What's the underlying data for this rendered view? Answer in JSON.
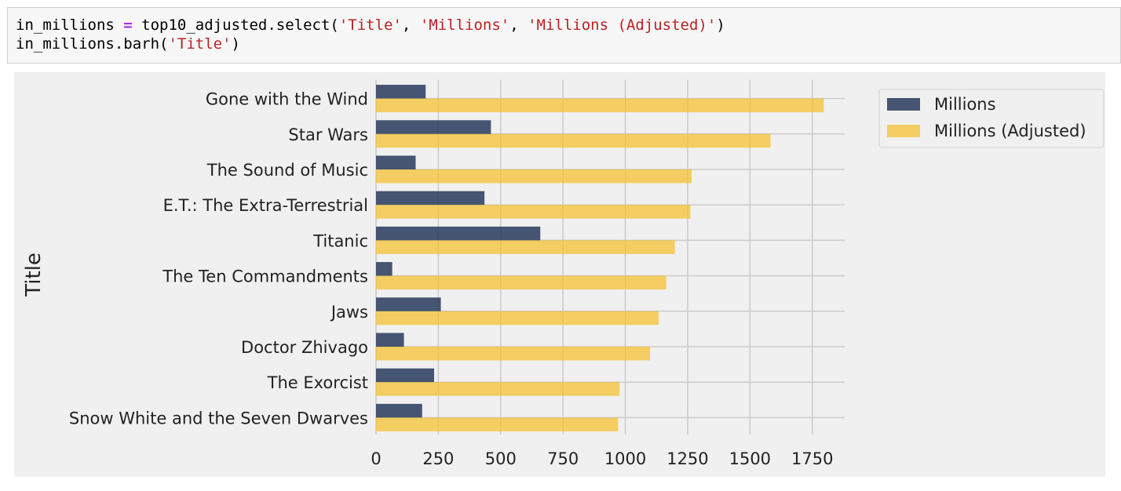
{
  "code_cell": {
    "lines": [
      [
        {
          "t": "in_millions ",
          "c": "plain"
        },
        {
          "t": "=",
          "c": "op"
        },
        {
          "t": " top10_adjusted.select(",
          "c": "plain"
        },
        {
          "t": "'Title'",
          "c": "str"
        },
        {
          "t": ", ",
          "c": "plain"
        },
        {
          "t": "'Millions'",
          "c": "str"
        },
        {
          "t": ", ",
          "c": "plain"
        },
        {
          "t": "'Millions (Adjusted)'",
          "c": "str"
        },
        {
          "t": ")",
          "c": "plain"
        }
      ],
      [
        {
          "t": "in_millions.barh(",
          "c": "plain"
        },
        {
          "t": "'Title'",
          "c": "str"
        },
        {
          "t": ")",
          "c": "plain"
        }
      ]
    ]
  },
  "chart_data": {
    "type": "bar",
    "orientation": "horizontal",
    "ylabel": "Title",
    "xlabel": "",
    "categories": [
      "Gone with the Wind",
      "Star Wars",
      "The Sound of Music",
      "E.T.: The Extra-Terrestrial",
      "Titanic",
      "The Ten Commandments",
      "Jaws",
      "Doctor Zhivago",
      "The Exorcist",
      "Snow White and the Seven Dwarves"
    ],
    "series": [
      {
        "name": "Millions",
        "color": "#1a2e52",
        "values": [
          199,
          461,
          159,
          435,
          659,
          65,
          260,
          112,
          233,
          185
        ]
      },
      {
        "name": "Millions (Adjusted)",
        "color": "#f5bf25",
        "values": [
          1796,
          1583,
          1266,
          1261,
          1199,
          1164,
          1134,
          1099,
          977,
          971
        ]
      }
    ],
    "xlim": [
      0,
      1880
    ],
    "xticks": [
      0,
      250,
      500,
      750,
      1000,
      1250,
      1500,
      1750
    ],
    "grid": true,
    "legend": "top-right-outside",
    "background": "#f0f0f0"
  }
}
